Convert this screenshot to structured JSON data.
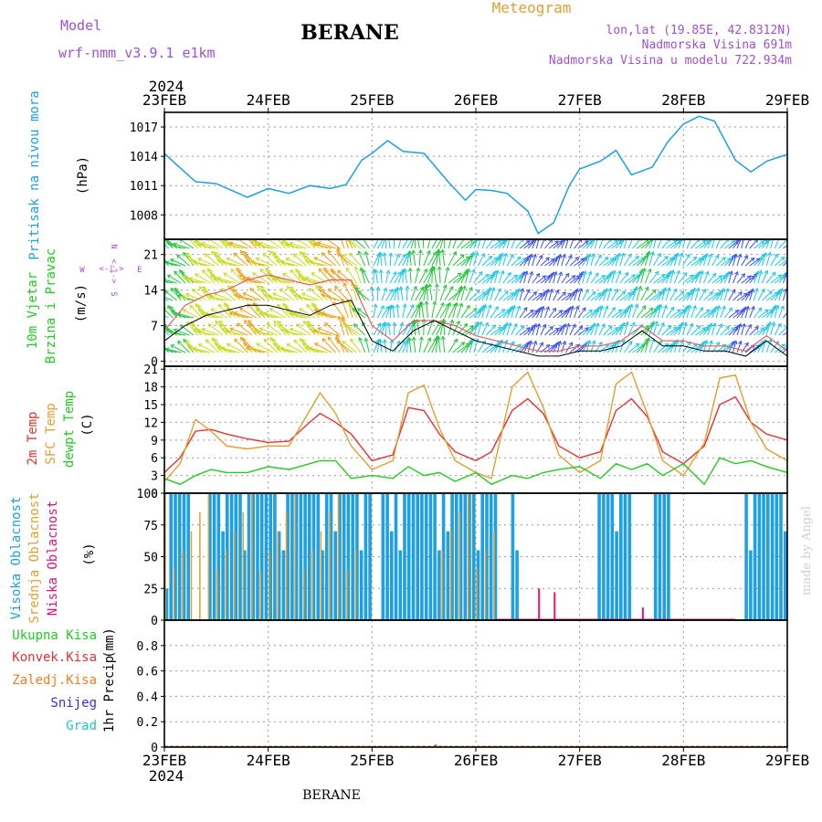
{
  "header": {
    "title": "BERANE",
    "meteogram_label": "Meteogram",
    "model_label": "Model",
    "model_name": "wrf-nmm_v3.9.1  e1km",
    "coords": "lon,lat (19.85E, 42.8312N)",
    "elevation": "Nadmorska Visina 691m",
    "model_elevation": "Nadmorska Visina u modelu 722.934m",
    "year_top": "2024",
    "year_bottom": "2024",
    "footer_title": "BERANE",
    "credit": "made by Angel"
  },
  "colors": {
    "pressure": "#1ea0e6",
    "temp2m": "#e83232",
    "sfc": "#e0a030",
    "dewpt": "#22cc22",
    "high_cloud": "#1ea0e6",
    "mid_cloud": "#e0a030",
    "low_cloud": "#e0147a",
    "total_rain": "#22cc22",
    "conv_rain": "#e83232",
    "frz_rain": "#ff7a20",
    "snow": "#3232e0",
    "hail": "#1ec8c8",
    "purple": "#a050d0"
  },
  "chart_data": [
    {
      "type": "line",
      "name": "pressure",
      "x_ticks": [
        "23FEB",
        "24FEB",
        "25FEB",
        "26FEB",
        "27FEB",
        "28FEB",
        "29FEB"
      ],
      "ylabel_lines": [
        "Pritisak na nivou mora",
        "(hPa)"
      ],
      "ylim": [
        1005.5,
        1018.5
      ],
      "yticks": [
        1008,
        1011,
        1014,
        1017
      ],
      "x_days": [
        0,
        0.1,
        0.3,
        0.5,
        0.8,
        1.0,
        1.2,
        1.4,
        1.6,
        1.75,
        1.9,
        2.0,
        2.15,
        2.3,
        2.5,
        2.75,
        2.9,
        3.0,
        3.15,
        3.3,
        3.5,
        3.6,
        3.75,
        3.9,
        4.0,
        4.2,
        4.35,
        4.5,
        4.7,
        4.85,
        5.0,
        5.15,
        5.3,
        5.5,
        5.65,
        5.8,
        6.0
      ],
      "values": [
        1014.3,
        1013.3,
        1011.4,
        1011.2,
        1009.8,
        1010.7,
        1010.2,
        1011.0,
        1010.7,
        1011.1,
        1013.6,
        1014.3,
        1015.6,
        1014.5,
        1014.3,
        1011.2,
        1009.5,
        1010.6,
        1010.5,
        1010.2,
        1008.4,
        1006.1,
        1007.2,
        1011.0,
        1012.7,
        1013.5,
        1014.6,
        1012.1,
        1012.9,
        1015.5,
        1017.3,
        1018.1,
        1017.6,
        1013.6,
        1012.4,
        1013.5,
        1014.2
      ],
      "grid": true
    },
    {
      "type": "line",
      "name": "wind",
      "ylabel_lines": [
        "10m Vjetar",
        "Brzina i Pravac",
        "(m/s)"
      ],
      "compass": [
        "N",
        "W",
        "E",
        "S",
        "<-|->"
      ],
      "ylim": [
        -1,
        24
      ],
      "yticks": [
        0,
        7,
        14,
        21
      ],
      "x_days": [
        0,
        0.2,
        0.4,
        0.6,
        0.8,
        1.0,
        1.2,
        1.4,
        1.6,
        1.8,
        2.0,
        2.2,
        2.4,
        2.6,
        2.8,
        3.0,
        3.2,
        3.4,
        3.6,
        3.8,
        4.0,
        4.2,
        4.4,
        4.6,
        4.8,
        5.0,
        5.2,
        5.4,
        5.6,
        5.8,
        6.0
      ],
      "speed": [
        4,
        7,
        9,
        10,
        11,
        11,
        10,
        9,
        11,
        12,
        4,
        2,
        6,
        8,
        6,
        4,
        3,
        2,
        1,
        1,
        2,
        2,
        3,
        6,
        3,
        3,
        2,
        2,
        1,
        4,
        1
      ],
      "gust": [
        6,
        11,
        13,
        14,
        16,
        17,
        16,
        15,
        16,
        16,
        7,
        4,
        8,
        8,
        7,
        5,
        4,
        3,
        2,
        2,
        3,
        3,
        4,
        7,
        4,
        4,
        3,
        3,
        2,
        5,
        2
      ],
      "grid": true
    },
    {
      "type": "line",
      "name": "temperature",
      "ylabel_lines": [
        "2m Temp",
        "SFC Temp",
        "dewpt Temp",
        "(C)"
      ],
      "ylim": [
        0,
        21.5
      ],
      "yticks": [
        0,
        3,
        6,
        9,
        12,
        15,
        18,
        21
      ],
      "x_days": [
        0,
        0.15,
        0.3,
        0.45,
        0.6,
        0.8,
        1.0,
        1.2,
        1.4,
        1.5,
        1.65,
        1.8,
        2.0,
        2.2,
        2.35,
        2.5,
        2.65,
        2.8,
        3.0,
        3.15,
        3.35,
        3.5,
        3.65,
        3.8,
        4.0,
        4.2,
        4.35,
        4.5,
        4.65,
        4.8,
        5.0,
        5.2,
        5.35,
        5.5,
        5.65,
        5.8,
        6.0
      ],
      "series": [
        {
          "name": "2m Temp",
          "values": [
            3.5,
            6.0,
            10.5,
            10.8,
            10.0,
            9.2,
            8.6,
            8.8,
            12.0,
            13.5,
            12.0,
            10.0,
            5.5,
            6.5,
            14.5,
            14.0,
            10.0,
            7.0,
            5.5,
            7.0,
            14.0,
            16.0,
            13.5,
            8.0,
            6.0,
            7.0,
            14.0,
            16.0,
            13.0,
            7.0,
            5.0,
            8.0,
            15.0,
            16.3,
            12.0,
            10.0,
            9.0
          ]
        },
        {
          "name": "SFC Temp",
          "values": [
            2.0,
            5.0,
            12.5,
            10.5,
            8.0,
            7.5,
            8.0,
            8.0,
            14.0,
            17.0,
            13.5,
            8.0,
            4.0,
            5.5,
            17.0,
            18.3,
            11.0,
            5.5,
            3.5,
            2.5,
            18.0,
            20.5,
            14.5,
            6.5,
            3.5,
            5.5,
            18.5,
            20.5,
            13.5,
            5.5,
            3.0,
            8.5,
            19.5,
            20.0,
            12.0,
            7.5,
            5.5
          ]
        },
        {
          "name": "dewpt Temp",
          "values": [
            2.5,
            1.5,
            3.0,
            4.0,
            3.5,
            3.5,
            4.5,
            4.0,
            5.0,
            5.5,
            5.5,
            2.5,
            3.0,
            2.5,
            4.5,
            3.0,
            3.5,
            2.0,
            3.5,
            1.5,
            3.0,
            2.5,
            3.5,
            4.0,
            4.5,
            2.5,
            5.0,
            4.0,
            5.0,
            3.0,
            5.0,
            1.5,
            6.0,
            5.0,
            5.5,
            4.5,
            3.5
          ]
        }
      ],
      "grid": true
    },
    {
      "type": "bar",
      "name": "clouds",
      "ylabel_lines": [
        "Visoka Oblacnost",
        "Srednja Oblacnost",
        "Niska Oblacnost",
        "(%)"
      ],
      "ylim": [
        0,
        100
      ],
      "yticks": [
        0,
        25,
        50,
        75,
        100
      ],
      "high_on_intervals": [
        [
          0.0,
          0.25
        ],
        [
          0.4,
          2.0
        ],
        [
          2.05,
          3.2
        ],
        [
          3.3,
          3.4
        ],
        [
          4.15,
          4.5
        ],
        [
          4.7,
          4.85
        ],
        [
          5.55,
          6.0
        ]
      ],
      "mid_on_intervals": [
        [
          0.0,
          0.4
        ],
        [
          0.4,
          1.9
        ],
        [
          2.6,
          3.2
        ]
      ],
      "low_spikes": [
        [
          3.6,
          25
        ],
        [
          3.75,
          22
        ],
        [
          4.6,
          10
        ]
      ],
      "grid": true
    },
    {
      "type": "bar",
      "name": "precip",
      "ylabel_lines": [
        "1hr Precip",
        "(mm)"
      ],
      "legend": [
        "Ukupna Kisa",
        "Konvek.Kisa",
        "Zaledj.Kisa",
        "Snijeg",
        "Grad"
      ],
      "ylim": [
        0,
        1.0
      ],
      "yticks": [
        0,
        0.2,
        0.4,
        0.6,
        0.8
      ],
      "ytick_labels": [
        "0",
        "0.2",
        "0.4",
        "0.6",
        "0.8"
      ],
      "x_days": [
        2.6,
        3.8
      ],
      "values": [
        0.02,
        0.01
      ],
      "grid": true
    }
  ]
}
